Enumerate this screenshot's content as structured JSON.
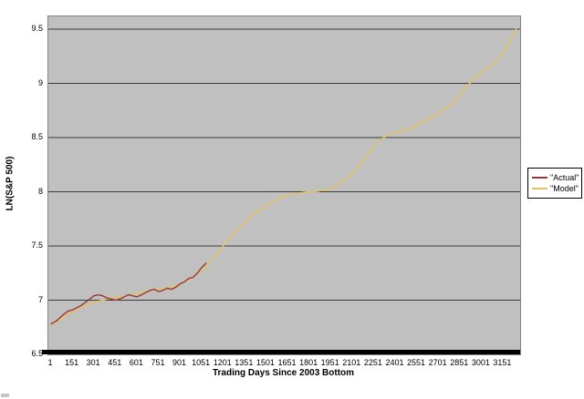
{
  "chart_data": {
    "type": "line",
    "title": "",
    "xlabel": "Trading Days Since 2003 Bottom",
    "ylabel": "LN(S&P 500)",
    "x_ticks": [
      1,
      151,
      301,
      451,
      601,
      751,
      901,
      1051,
      1201,
      1351,
      1501,
      1651,
      1801,
      1951,
      2101,
      2251,
      2401,
      2551,
      2701,
      2851,
      3001,
      3151
    ],
    "y_ticks": [
      6.5,
      7,
      7.5,
      8,
      8.5,
      9,
      9.5
    ],
    "xlim": [
      1,
      3250
    ],
    "ylim": [
      6.5,
      9.62
    ],
    "grid": "horizontal-only",
    "legend_position": "right",
    "plot_bg_color": "#c0c0c0",
    "gridline_color": "#3a3a3a",
    "axis_color": "#000000",
    "series": [
      {
        "name": "\"Actual\"",
        "color": "#993737",
        "points": [
          [
            1,
            6.78
          ],
          [
            40,
            6.81
          ],
          [
            80,
            6.86
          ],
          [
            120,
            6.9
          ],
          [
            150,
            6.91
          ],
          [
            180,
            6.93
          ],
          [
            210,
            6.95
          ],
          [
            240,
            6.98
          ],
          [
            270,
            7.01
          ],
          [
            300,
            7.04
          ],
          [
            330,
            7.05
          ],
          [
            360,
            7.04
          ],
          [
            390,
            7.02
          ],
          [
            420,
            7.01
          ],
          [
            450,
            7.0
          ],
          [
            480,
            7.01
          ],
          [
            510,
            7.03
          ],
          [
            540,
            7.05
          ],
          [
            570,
            7.04
          ],
          [
            600,
            7.03
          ],
          [
            630,
            7.05
          ],
          [
            660,
            7.07
          ],
          [
            690,
            7.09
          ],
          [
            720,
            7.1
          ],
          [
            750,
            7.08
          ],
          [
            780,
            7.09
          ],
          [
            810,
            7.11
          ],
          [
            840,
            7.1
          ],
          [
            870,
            7.12
          ],
          [
            900,
            7.15
          ],
          [
            930,
            7.17
          ],
          [
            960,
            7.2
          ],
          [
            990,
            7.21
          ],
          [
            1020,
            7.25
          ],
          [
            1050,
            7.3
          ],
          [
            1080,
            7.34
          ]
        ]
      },
      {
        "name": "\"Model\"",
        "color": "#e2c268",
        "points": [
          [
            1,
            6.77
          ],
          [
            60,
            6.82
          ],
          [
            120,
            6.87
          ],
          [
            180,
            6.91
          ],
          [
            240,
            6.95
          ],
          [
            300,
            6.98
          ],
          [
            360,
            7.0
          ],
          [
            420,
            7.02
          ],
          [
            480,
            7.03
          ],
          [
            540,
            7.045
          ],
          [
            600,
            7.06
          ],
          [
            660,
            7.08
          ],
          [
            720,
            7.095
          ],
          [
            780,
            7.105
          ],
          [
            840,
            7.12
          ],
          [
            900,
            7.15
          ],
          [
            960,
            7.19
          ],
          [
            1020,
            7.24
          ],
          [
            1080,
            7.31
          ],
          [
            1140,
            7.4
          ],
          [
            1200,
            7.5
          ],
          [
            1260,
            7.6
          ],
          [
            1320,
            7.68
          ],
          [
            1380,
            7.76
          ],
          [
            1440,
            7.82
          ],
          [
            1500,
            7.87
          ],
          [
            1560,
            7.92
          ],
          [
            1620,
            7.955
          ],
          [
            1680,
            7.98
          ],
          [
            1740,
            7.99
          ],
          [
            1800,
            8.0
          ],
          [
            1860,
            8.005
          ],
          [
            1920,
            8.02
          ],
          [
            1980,
            8.05
          ],
          [
            2040,
            8.1
          ],
          [
            2100,
            8.17
          ],
          [
            2160,
            8.26
          ],
          [
            2220,
            8.37
          ],
          [
            2280,
            8.46
          ],
          [
            2340,
            8.52
          ],
          [
            2400,
            8.55
          ],
          [
            2460,
            8.56
          ],
          [
            2520,
            8.59
          ],
          [
            2580,
            8.64
          ],
          [
            2640,
            8.68
          ],
          [
            2700,
            8.72
          ],
          [
            2760,
            8.78
          ],
          [
            2820,
            8.84
          ],
          [
            2880,
            8.95
          ],
          [
            2940,
            9.03
          ],
          [
            3000,
            9.1
          ],
          [
            3060,
            9.16
          ],
          [
            3120,
            9.22
          ],
          [
            3180,
            9.35
          ],
          [
            3240,
            9.5
          ]
        ]
      }
    ]
  },
  "legend": {
    "items": [
      {
        "label": "\"Actual\""
      },
      {
        "label": "\"Model\""
      }
    ]
  }
}
